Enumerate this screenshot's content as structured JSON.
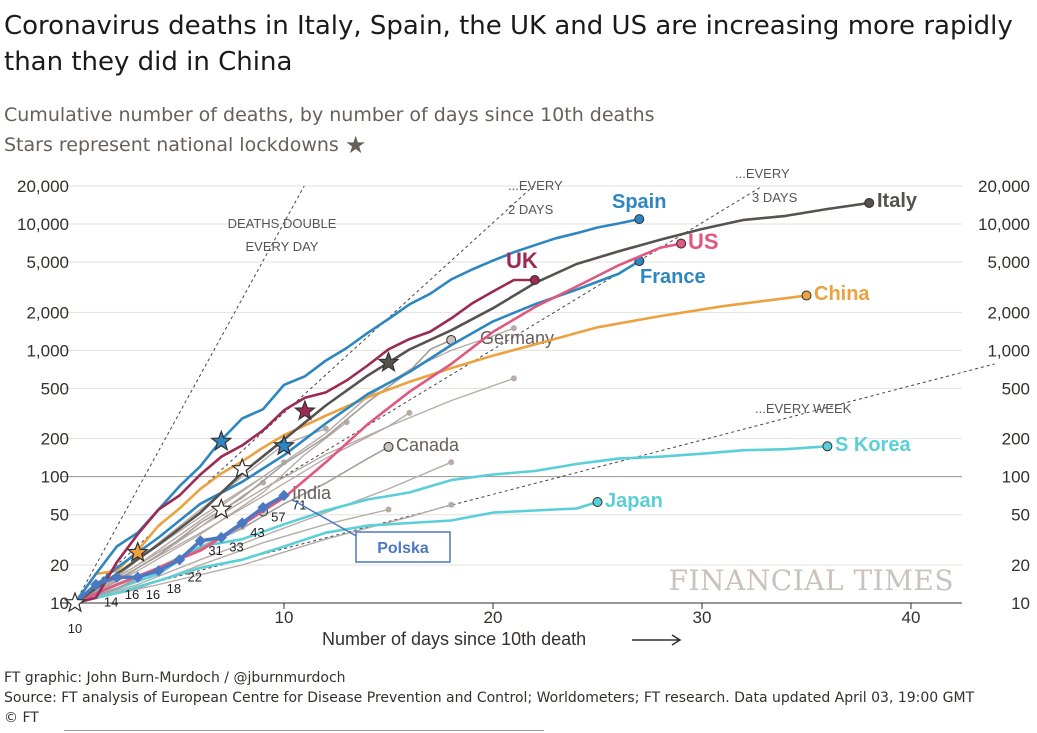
{
  "header": {
    "title": "Coronavirus deaths in Italy, Spain, the UK and US are increasing more rapidly than they did in China",
    "subtitle_line1": "Cumulative number of deaths, by number of days since 10th deaths",
    "subtitle_line2": "Stars represent national lockdowns"
  },
  "footer": {
    "graphic": "FT graphic: John Burn-Murdoch / @jburnmurdoch",
    "source": "Source: FT analysis of European Centre for Disease Prevention and Control; Worldometers; FT research. Data updated April 03, 19:00 GMT",
    "copyright": "© FT"
  },
  "colors": {
    "spain": "#2e86c1",
    "italy": "#555250",
    "uk": "#9b2a55",
    "us": "#e0577f",
    "france": "#2e86c1",
    "china": "#eba240",
    "skorea": "#5bcfd7",
    "japan": "#5bcfd7",
    "polska": "#4a78c2",
    "grey": "#b5aca7",
    "guide": "#444444"
  },
  "chart_data": {
    "type": "line",
    "xlabel": "Number of days since 10th death",
    "ylabel": "",
    "xlim": [
      0,
      44
    ],
    "ylim": [
      10,
      20000
    ],
    "yscale": "log",
    "x_ticks": [
      10,
      20,
      30,
      40
    ],
    "y_ticks": [
      10,
      20,
      50,
      100,
      200,
      500,
      1000,
      2000,
      5000,
      10000,
      20000
    ],
    "y_tick_labels": [
      "10",
      "20",
      "50",
      "100",
      "200",
      "500",
      "1,000",
      "2,000",
      "5,000",
      "10,000",
      "20,000"
    ],
    "watermark": "FINANCIAL TIMES",
    "guides": [
      {
        "label1": "DEATHS DOUBLE",
        "label2": "EVERY DAY",
        "doubling_days": 1
      },
      {
        "label1": "...EVERY",
        "label2": "2 DAYS",
        "doubling_days": 2
      },
      {
        "label1": "...EVERY",
        "label2": "3 DAYS",
        "doubling_days": 3
      },
      {
        "label1": "...EVERY WEEK",
        "label2": "",
        "doubling_days": 7
      }
    ],
    "series": [
      {
        "name": "Spain",
        "key": "spain",
        "label_weight": "bold",
        "x": [
          0,
          1,
          2,
          3,
          4,
          5,
          6,
          7,
          8,
          9,
          10,
          11,
          12,
          13,
          14,
          15,
          16,
          17,
          18,
          19,
          20,
          21,
          22,
          23,
          24,
          25,
          26,
          27
        ],
        "y": [
          10,
          17,
          28,
          36,
          55,
          84,
          121,
          195,
          289,
          342,
          533,
          623,
          830,
          1043,
          1375,
          1772,
          2311,
          2808,
          3647,
          4365,
          5138,
          5982,
          6803,
          7716,
          8464,
          9387,
          10096,
          10935
        ]
      },
      {
        "name": "Italy",
        "key": "italy",
        "label_weight": "bold",
        "x": [
          0,
          2,
          4,
          6,
          8,
          10,
          12,
          14,
          16,
          18,
          20,
          22,
          24,
          26,
          28,
          30,
          32,
          34,
          36,
          38
        ],
        "y": [
          10,
          17,
          29,
          52,
          107,
          197,
          366,
          631,
          1016,
          1441,
          2158,
          3405,
          4825,
          6077,
          7503,
          9134,
          10779,
          11591,
          13155,
          14681
        ]
      },
      {
        "name": "UK",
        "key": "uk",
        "label_weight": "bold",
        "x": [
          0,
          1,
          2,
          3,
          4,
          5,
          6,
          7,
          8,
          9,
          10,
          11,
          12,
          13,
          14,
          15,
          16,
          17,
          18,
          19,
          20,
          21,
          22
        ],
        "y": [
          10,
          11,
          21,
          35,
          55,
          71,
          104,
          144,
          177,
          233,
          335,
          422,
          465,
          578,
          759,
          1019,
          1228,
          1408,
          1789,
          2352,
          2921,
          3605,
          3605
        ]
      },
      {
        "name": "US",
        "key": "us",
        "label_weight": "bold",
        "x": [
          0,
          2,
          4,
          6,
          8,
          10,
          12,
          14,
          16,
          18,
          20,
          22,
          24,
          26,
          28,
          29
        ],
        "y": [
          10,
          14,
          19,
          26,
          42,
          68,
          130,
          260,
          470,
          780,
          1400,
          2200,
          3200,
          4700,
          6500,
          7000
        ]
      },
      {
        "name": "France",
        "key": "france",
        "label_weight": "bold",
        "x": [
          0,
          2,
          4,
          6,
          8,
          10,
          12,
          14,
          16,
          18,
          20,
          22,
          24,
          26,
          27
        ],
        "y": [
          10,
          19,
          33,
          61,
          91,
          148,
          264,
          450,
          674,
          1100,
          1696,
          2314,
          3024,
          4032,
          5091
        ]
      },
      {
        "name": "China",
        "key": "china",
        "label_weight": "bold",
        "x": [
          0,
          1,
          2,
          3,
          4,
          5,
          6,
          7,
          8,
          9,
          10,
          12,
          14,
          16,
          18,
          20,
          22,
          25,
          28,
          31,
          35
        ],
        "y": [
          10,
          17,
          18,
          26,
          41,
          56,
          80,
          106,
          132,
          170,
          213,
          304,
          425,
          563,
          723,
          908,
          1113,
          1523,
          1868,
          2236,
          2715
        ]
      },
      {
        "name": "Germany",
        "key": "grey_label",
        "label_weight": "normal",
        "x": [
          0,
          2,
          4,
          6,
          8,
          10,
          12,
          14,
          16,
          17,
          18
        ],
        "y": [
          10,
          15,
          24,
          43,
          68,
          126,
          206,
          389,
          682,
          1017,
          1207
        ]
      },
      {
        "name": "Canada",
        "key": "grey_label",
        "label_weight": "normal",
        "x": [
          0,
          2,
          4,
          6,
          8,
          10,
          12,
          14,
          15
        ],
        "y": [
          10,
          13,
          19,
          27,
          39,
          61,
          89,
          139,
          172
        ]
      },
      {
        "name": "India",
        "key": "grey_label",
        "label_weight": "normal",
        "x": [
          0,
          2,
          4,
          6,
          8,
          9
        ],
        "y": [
          10,
          13,
          19,
          27,
          41,
          53
        ]
      },
      {
        "name": "S Korea",
        "key": "skorea",
        "label_weight": "bold",
        "x": [
          0,
          2,
          4,
          6,
          8,
          10,
          12,
          14,
          16,
          18,
          20,
          22,
          24,
          26,
          28,
          30,
          32,
          34,
          36
        ],
        "y": [
          10,
          13,
          17,
          28,
          32,
          42,
          54,
          66,
          75,
          94,
          104,
          111,
          126,
          139,
          144,
          152,
          162,
          165,
          174
        ]
      },
      {
        "name": "Japan",
        "key": "japan",
        "label_weight": "bold",
        "x": [
          0,
          2,
          4,
          6,
          8,
          10,
          12,
          14,
          16,
          18,
          20,
          22,
          24,
          25
        ],
        "y": [
          10,
          12,
          15,
          19,
          22,
          28,
          36,
          41,
          43,
          45,
          52,
          54,
          56,
          63
        ]
      },
      {
        "name": "Polska",
        "key": "polska",
        "label_weight": "bold",
        "x": [
          0,
          1,
          2,
          3,
          4,
          5,
          6,
          7,
          8,
          9,
          10
        ],
        "y": [
          10,
          14,
          16,
          16,
          18,
          22,
          31,
          33,
          43,
          57,
          71
        ],
        "point_labels": [
          "10",
          "14",
          "16",
          "16",
          "18",
          "22",
          "31",
          "33",
          "43",
          "57",
          "71"
        ]
      }
    ],
    "grey_lines": [
      {
        "x": [
          0,
          3,
          6,
          9,
          12,
          14,
          16,
          18,
          20,
          21
        ],
        "y": [
          10,
          22,
          48,
          100,
          220,
          430,
          700,
          1000,
          1300,
          1500
        ]
      },
      {
        "x": [
          0,
          3,
          6,
          9,
          12,
          15,
          18,
          21
        ],
        "y": [
          10,
          20,
          40,
          80,
          150,
          250,
          400,
          600
        ]
      },
      {
        "x": [
          0,
          3,
          6,
          9,
          12,
          15,
          16
        ],
        "y": [
          10,
          19,
          36,
          70,
          140,
          250,
          320
        ]
      },
      {
        "x": [
          0,
          3,
          6,
          9,
          11,
          13
        ],
        "y": [
          10,
          18,
          35,
          75,
          150,
          270
        ]
      },
      {
        "x": [
          0,
          3,
          6,
          9,
          10
        ],
        "y": [
          10,
          20,
          45,
          100,
          130
        ]
      },
      {
        "x": [
          0,
          3,
          6,
          9,
          12,
          15,
          18
        ],
        "y": [
          10,
          14,
          22,
          34,
          52,
          80,
          130
        ]
      },
      {
        "x": [
          0,
          2,
          4,
          6,
          8,
          9
        ],
        "y": [
          10,
          15,
          24,
          40,
          70,
          90
        ]
      },
      {
        "x": [
          0,
          3,
          6,
          9,
          12,
          15
        ],
        "y": [
          10,
          13,
          20,
          30,
          42,
          55
        ]
      },
      {
        "x": [
          0,
          3,
          6,
          8
        ],
        "y": [
          10,
          16,
          28,
          40
        ]
      },
      {
        "x": [
          0,
          4,
          8,
          12,
          16,
          18
        ],
        "y": [
          10,
          14,
          20,
          32,
          48,
          60
        ]
      },
      {
        "x": [
          0,
          2,
          4,
          6,
          8,
          10,
          12
        ],
        "y": [
          10,
          16,
          30,
          55,
          100,
          180,
          240
        ]
      }
    ],
    "lockdowns": [
      {
        "x": 0,
        "y": 10,
        "key": "italy_star",
        "country": "Italy-start"
      },
      {
        "x": 3,
        "y": 25,
        "key": "china",
        "country": "China"
      },
      {
        "x": 7,
        "y": 190,
        "key": "spain",
        "country": "Spain"
      },
      {
        "x": 7,
        "y": 55,
        "key": "grey",
        "country": "Other-1"
      },
      {
        "x": 8,
        "y": 115,
        "key": "grey",
        "country": "Other-2"
      },
      {
        "x": 10,
        "y": 175,
        "key": "france",
        "country": "France"
      },
      {
        "x": 11,
        "y": 330,
        "key": "uk",
        "country": "UK"
      },
      {
        "x": 15,
        "y": 800,
        "key": "italy",
        "country": "Italy"
      }
    ],
    "callout": {
      "label": "Polska",
      "x": 10,
      "y": 71
    }
  }
}
